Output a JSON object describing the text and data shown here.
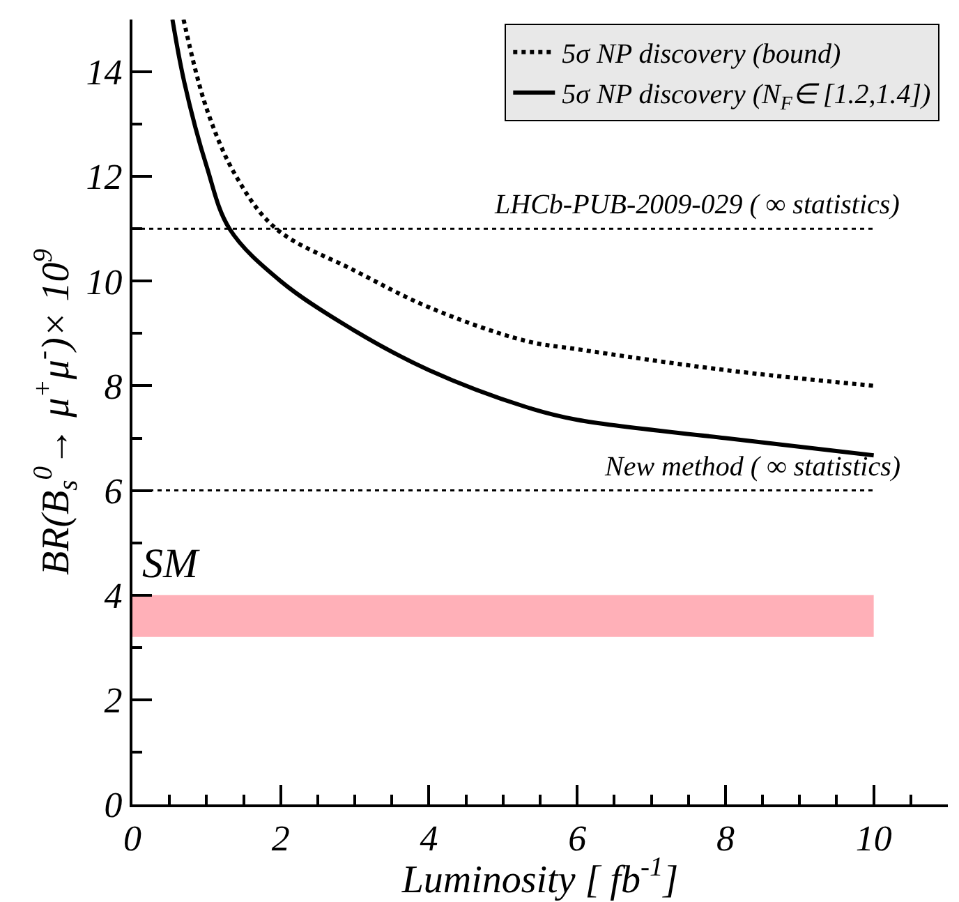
{
  "chart_data": {
    "type": "line",
    "xlabel": "Luminosity [ fb$^{-1}$]",
    "ylabel": "BR(B$_{s}$$^{0}$→ μ$^{+}$μ$^{-}$)× 10$^{9}$",
    "xlim": [
      0,
      11
    ],
    "ylim": [
      0,
      15
    ],
    "xticks": [
      0,
      2,
      4,
      6,
      8,
      10
    ],
    "yticks": [
      0,
      2,
      4,
      6,
      8,
      10,
      12,
      14
    ],
    "grid": false,
    "legend": "top right",
    "marker": "none",
    "series": [
      {
        "name": "5σ NP discovery (bound)",
        "color": "#000000",
        "line_style": "dotted",
        "x": [
          0.69,
          1.0,
          1.4,
          1.94,
          3,
          4,
          5.3,
          6,
          8,
          10
        ],
        "values": [
          15,
          13.3,
          12.0,
          11.0,
          10.2,
          9.5,
          8.86,
          8.7,
          8.3,
          8.0
        ]
      },
      {
        "name": "5σ NP discovery (N$_{F}$∈ [1.2,1.4])",
        "color": "#000000",
        "line_style": "solid",
        "x": [
          0.54,
          0.7,
          1.0,
          1.31,
          2,
          3,
          4,
          5.3,
          6,
          8,
          10
        ],
        "values": [
          15,
          13.8,
          12.2,
          11.0,
          10.0,
          9.05,
          8.3,
          7.6,
          7.35,
          7.0,
          6.67
        ]
      }
    ],
    "ref_lines": [
      {
        "axis": "y",
        "value": 11,
        "label": "LHCb-PUB-2009-029 ( ∞ statistics)",
        "color": "#000000",
        "line_style": "dotted"
      },
      {
        "axis": "y",
        "value": 6,
        "label": "New method ( ∞ statistics)",
        "color": "#000000",
        "line_style": "dotted"
      }
    ],
    "bands": [
      {
        "axis": "y",
        "from": 3.2,
        "to": 4.0,
        "label": "SM",
        "color": "#ffb0b8"
      }
    ]
  }
}
